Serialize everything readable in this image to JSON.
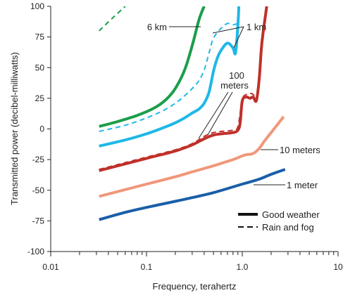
{
  "chart_data": {
    "type": "line",
    "xlabel": "Frequency, terahertz",
    "ylabel": "Transmitted power (decibel-milliwatts)",
    "x_scale": "log",
    "xlim": [
      0.01,
      10
    ],
    "ylim": [
      -100,
      100
    ],
    "x_ticks": [
      0.01,
      0.1,
      1.0,
      10
    ],
    "x_tick_labels": [
      "0.01",
      "0.1",
      "1.0",
      "10"
    ],
    "y_ticks": [
      100,
      75,
      50,
      25,
      0,
      -25,
      -50,
      -75,
      -100
    ],
    "y_tick_labels": [
      "100",
      "75",
      "50",
      "25",
      "0",
      "-25",
      "-50",
      "-75",
      "-100"
    ],
    "grid": false,
    "legend_position": "bottom-right",
    "legend": [
      {
        "label": "Good weather",
        "style": "solid"
      },
      {
        "label": "Rain and fog",
        "style": "dashed"
      }
    ],
    "annotations": [
      {
        "text": "6 km",
        "series": [
          "6km-good",
          "6km-rain"
        ]
      },
      {
        "text": "1 km",
        "series": [
          "1km-good",
          "1km-rain"
        ]
      },
      {
        "text": "100",
        "series": [
          "100m-good",
          "100m-rain"
        ]
      },
      {
        "text": "meters",
        "series": [
          "100m-good",
          "100m-rain"
        ]
      },
      {
        "text": "10 meters",
        "series": [
          "10m-good"
        ]
      },
      {
        "text": "1 meter",
        "series": [
          "1m-good"
        ]
      }
    ],
    "series": [
      {
        "id": "6km-rain",
        "style": "dashed",
        "color": "#1a9e4a",
        "x": [
          0.032,
          0.045,
          0.06
        ],
        "y": [
          80,
          91,
          100
        ]
      },
      {
        "id": "6km-good",
        "style": "solid",
        "color": "#1a9e4a",
        "x": [
          0.032,
          0.05,
          0.08,
          0.12,
          0.16,
          0.2,
          0.25,
          0.3,
          0.35,
          0.38,
          0.4
        ],
        "y": [
          2,
          6,
          11,
          17,
          24,
          33,
          48,
          68,
          88,
          96,
          100
        ]
      },
      {
        "id": "1km-rain",
        "style": "dashed",
        "color": "#1fb8e6",
        "x": [
          0.032,
          0.06,
          0.1,
          0.15,
          0.2,
          0.25,
          0.3,
          0.35,
          0.4,
          0.45,
          0.5,
          0.6,
          0.7,
          0.8,
          0.9
        ],
        "y": [
          -2,
          3,
          9,
          15,
          21,
          27,
          33,
          39,
          48,
          62,
          74,
          82,
          86,
          85,
          86
        ]
      },
      {
        "id": "1km-good",
        "style": "solid",
        "color": "#1fb8e6",
        "x": [
          0.032,
          0.06,
          0.1,
          0.15,
          0.2,
          0.25,
          0.3,
          0.35,
          0.4,
          0.45,
          0.5,
          0.55,
          0.6,
          0.7,
          0.8,
          0.85,
          0.9,
          0.92
        ],
        "y": [
          -14,
          -9,
          -4,
          1,
          5,
          9,
          13,
          16,
          21,
          30,
          47,
          58,
          64,
          70,
          66,
          62,
          85,
          100
        ]
      },
      {
        "id": "100m-rain",
        "style": "dashed",
        "color": "#c0302a",
        "x": [
          0.032,
          0.1,
          0.2,
          0.3,
          0.4,
          0.5,
          0.6,
          0.8,
          0.9,
          1.0,
          1.1,
          1.2,
          1.3,
          1.4
        ],
        "y": [
          -33,
          -23,
          -17,
          -12,
          -6,
          -3,
          -2,
          -1,
          2,
          24,
          28,
          29,
          28,
          24
        ]
      },
      {
        "id": "100m-good",
        "style": "solid",
        "color": "#c0302a",
        "x": [
          0.032,
          0.1,
          0.2,
          0.3,
          0.4,
          0.5,
          0.6,
          0.8,
          0.9,
          0.95,
          1.0,
          1.1,
          1.2,
          1.3,
          1.4,
          1.5,
          1.6,
          1.8
        ],
        "y": [
          -34,
          -24,
          -18,
          -13,
          -8,
          -5,
          -4,
          -3,
          -1,
          5,
          23,
          26,
          25,
          26,
          23,
          40,
          70,
          100
        ]
      },
      {
        "id": "10m-good",
        "style": "solid",
        "color": "#f0977a",
        "x": [
          0.032,
          0.1,
          0.2,
          0.3,
          0.5,
          0.8,
          1.0,
          1.1,
          1.3,
          1.5,
          1.7,
          2.0,
          2.3,
          2.7
        ],
        "y": [
          -55,
          -45,
          -39,
          -35,
          -30,
          -25,
          -22,
          -21,
          -20,
          -16,
          -10,
          -3,
          3,
          10
        ]
      },
      {
        "id": "1m-good",
        "style": "solid",
        "color": "#1a5fa8",
        "x": [
          0.032,
          0.06,
          0.1,
          0.2,
          0.3,
          0.5,
          1.0,
          1.5,
          2.0,
          2.8
        ],
        "y": [
          -74,
          -68,
          -64,
          -59,
          -56,
          -52,
          -45,
          -41,
          -37,
          -33
        ]
      }
    ]
  }
}
